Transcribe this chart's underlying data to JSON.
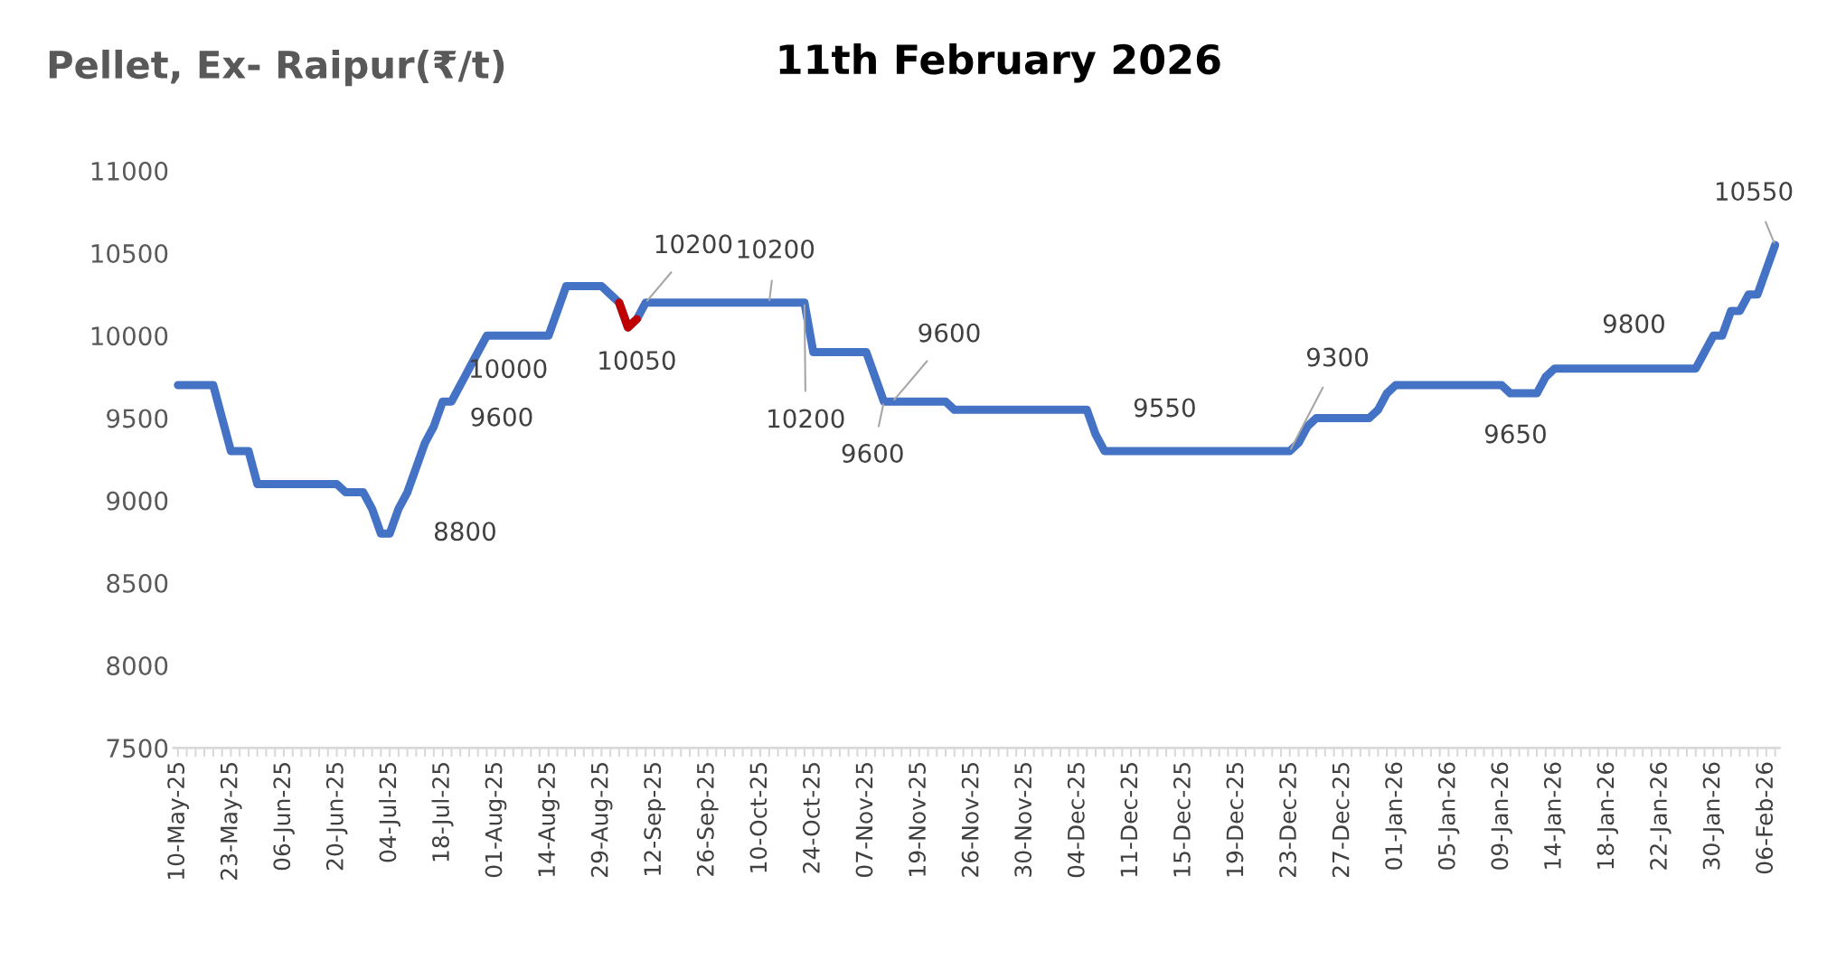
{
  "chart_data": {
    "type": "line",
    "title": "Pellet, Ex- Raipur(₹/t)",
    "subtitle": "11th February 2026",
    "categories": [
      "10-May-25",
      null,
      null,
      null,
      null,
      null,
      "23-May-25",
      null,
      null,
      null,
      null,
      null,
      "06-Jun-25",
      null,
      null,
      null,
      null,
      null,
      "20-Jun-25",
      null,
      null,
      null,
      null,
      null,
      "04-Jul-25",
      null,
      null,
      null,
      null,
      null,
      "18-Jul-25",
      null,
      null,
      null,
      null,
      null,
      "01-Aug-25",
      null,
      null,
      null,
      null,
      null,
      "14-Aug-25",
      null,
      null,
      null,
      null,
      null,
      "29-Aug-25",
      null,
      null,
      null,
      null,
      null,
      "12-Sep-25",
      null,
      null,
      null,
      null,
      null,
      "26-Sep-25",
      null,
      null,
      null,
      null,
      null,
      "10-Oct-25",
      null,
      null,
      null,
      null,
      null,
      "24-Oct-25",
      null,
      null,
      null,
      null,
      null,
      "07-Nov-25",
      null,
      null,
      null,
      null,
      null,
      "19-Nov-25",
      null,
      null,
      null,
      null,
      null,
      "26-Nov-25",
      null,
      null,
      null,
      null,
      null,
      "30-Nov-25",
      null,
      null,
      null,
      null,
      null,
      "04-Dec-25",
      null,
      null,
      null,
      null,
      null,
      "11-Dec-25",
      null,
      null,
      null,
      null,
      null,
      "15-Dec-25",
      null,
      null,
      null,
      null,
      null,
      "19-Dec-25",
      null,
      null,
      null,
      null,
      null,
      "23-Dec-25",
      null,
      null,
      null,
      null,
      null,
      "27-Dec-25",
      null,
      null,
      null,
      null,
      null,
      "01-Jan-26",
      null,
      null,
      null,
      null,
      null,
      "05-Jan-26",
      null,
      null,
      null,
      null,
      null,
      "09-Jan-26",
      null,
      null,
      null,
      null,
      null,
      "14-Jan-26",
      null,
      null,
      null,
      null,
      null,
      "18-Jan-26",
      null,
      null,
      null,
      null,
      null,
      "22-Jan-26",
      null,
      null,
      null,
      null,
      null,
      "30-Jan-26",
      null,
      null,
      null,
      null,
      null,
      "06-Feb-26",
      null
    ],
    "series": [
      {
        "color": "#4472c4",
        "values": [
          9700,
          9700,
          9700,
          9700,
          9700,
          9500,
          9300,
          9300,
          9300,
          9100,
          9100,
          9100,
          9100,
          9100,
          9100,
          9100,
          9100,
          9100,
          9100,
          9050,
          9050,
          9050,
          8950,
          8800,
          8800,
          8950,
          9050,
          9200,
          9350,
          9450,
          9600,
          9600,
          9700,
          9800,
          9900,
          10000,
          10000,
          10000,
          10000,
          10000,
          10000,
          10000,
          10000,
          10150,
          10300,
          10300,
          10300,
          10300,
          10300,
          10250,
          10200,
          10050,
          10100,
          10200,
          10200,
          10200,
          10200,
          10200,
          10200,
          10200,
          10200,
          10200,
          10200,
          10200,
          10200,
          10200,
          10200,
          10200,
          10200,
          10200,
          10200,
          10200,
          9900,
          9900,
          9900,
          9900,
          9900,
          9900,
          9900,
          9750,
          9600,
          9600,
          9600,
          9600,
          9600,
          9600,
          9600,
          9600,
          9550,
          9550,
          9550,
          9550,
          9550,
          9550,
          9550,
          9550,
          9550,
          9550,
          9550,
          9550,
          9550,
          9550,
          9550,
          9550,
          9400,
          9300,
          9300,
          9300,
          9300,
          9300,
          9300,
          9300,
          9300,
          9300,
          9300,
          9300,
          9300,
          9300,
          9300,
          9300,
          9300,
          9300,
          9300,
          9300,
          9300,
          9300,
          9300,
          9350,
          9450,
          9500,
          9500,
          9500,
          9500,
          9500,
          9500,
          9500,
          9550,
          9650,
          9700,
          9700,
          9700,
          9700,
          9700,
          9700,
          9700,
          9700,
          9700,
          9700,
          9700,
          9700,
          9700,
          9650,
          9650,
          9650,
          9650,
          9750,
          9800,
          9800,
          9800,
          9800,
          9800,
          9800,
          9800,
          9800,
          9800,
          9800,
          9800,
          9800,
          9800,
          9800,
          9800,
          9800,
          9800,
          9900,
          10000,
          10000,
          10150,
          10150,
          10250,
          10250,
          10400,
          10550
        ],
        "value_labels": [
          null,
          null,
          null,
          null,
          null,
          null,
          null,
          null,
          null,
          null,
          null,
          null,
          null,
          null,
          null,
          null,
          null,
          null,
          null,
          null,
          null,
          null,
          null,
          null,
          "8800",
          null,
          null,
          null,
          null,
          null,
          null,
          "9600",
          null,
          null,
          null,
          "10000",
          null,
          null,
          null,
          null,
          null,
          null,
          null,
          null,
          null,
          null,
          null,
          null,
          null,
          null,
          null,
          "10050",
          null,
          "10200",
          null,
          null,
          null,
          null,
          null,
          null,
          null,
          null,
          null,
          null,
          null,
          null,
          null,
          "10200",
          null,
          null,
          null,
          "10200",
          null,
          null,
          null,
          null,
          null,
          null,
          null,
          null,
          "9600",
          "9600",
          null,
          null,
          null,
          null,
          null,
          null,
          null,
          null,
          null,
          null,
          null,
          null,
          null,
          null,
          null,
          null,
          null,
          null,
          null,
          null,
          null,
          "9550",
          null,
          null,
          null,
          null,
          null,
          null,
          null,
          null,
          null,
          null,
          null,
          null,
          null,
          null,
          null,
          null,
          null,
          null,
          null,
          null,
          null,
          null,
          "9300",
          null,
          null,
          null,
          null,
          null,
          null,
          null,
          null,
          null,
          null,
          null,
          null,
          null,
          null,
          null,
          null,
          null,
          null,
          null,
          null,
          null,
          null,
          null,
          null,
          null,
          null,
          "9650",
          null,
          null,
          null,
          null,
          null,
          null,
          null,
          null,
          null,
          null,
          null,
          "9800",
          null,
          null,
          null,
          null,
          null,
          null,
          null,
          null,
          null,
          null,
          null,
          null,
          null,
          null,
          null,
          "10550"
        ]
      },
      {
        "color": "#c00000",
        "values": [
          null,
          null,
          null,
          null,
          null,
          null,
          null,
          null,
          null,
          null,
          null,
          null,
          null,
          null,
          null,
          null,
          null,
          null,
          null,
          null,
          null,
          null,
          null,
          null,
          null,
          null,
          null,
          null,
          null,
          null,
          null,
          null,
          null,
          null,
          null,
          null,
          null,
          null,
          null,
          null,
          null,
          null,
          null,
          null,
          null,
          null,
          null,
          null,
          null,
          null,
          10200,
          10050,
          10100,
          null,
          null,
          null,
          null,
          null,
          null,
          null,
          null,
          null,
          null,
          null,
          null,
          null,
          null,
          null,
          null,
          null,
          null,
          null,
          null,
          null,
          null,
          null,
          null,
          null,
          null,
          null,
          null,
          null,
          null,
          null,
          null,
          null,
          null,
          null,
          null,
          null,
          null,
          null,
          null,
          null,
          null,
          null,
          null,
          null,
          null,
          null,
          null,
          null,
          null,
          null,
          null,
          null,
          null,
          null,
          null,
          null,
          null,
          null,
          null,
          null,
          null,
          null,
          null,
          null,
          null,
          null,
          null,
          null,
          null,
          null,
          null,
          null,
          null,
          null,
          null,
          null,
          null,
          null,
          null,
          null,
          null,
          null,
          null,
          null,
          null,
          null,
          null,
          null,
          null,
          null,
          null,
          null,
          null,
          null,
          null,
          null,
          null,
          null,
          null,
          null,
          null,
          null,
          null,
          null,
          null,
          null,
          null,
          null,
          null,
          null,
          null,
          null,
          null,
          null,
          null,
          null,
          null,
          null,
          null,
          null,
          null,
          null,
          null,
          null,
          null,
          null,
          null,
          null
        ]
      }
    ],
    "ylim": [
      7500,
      11000
    ],
    "yticks": [
      7500,
      8000,
      8500,
      9000,
      9500,
      10000,
      10500,
      11000
    ],
    "grid": false,
    "legend": false,
    "marker": "none",
    "line_style": "solid"
  }
}
